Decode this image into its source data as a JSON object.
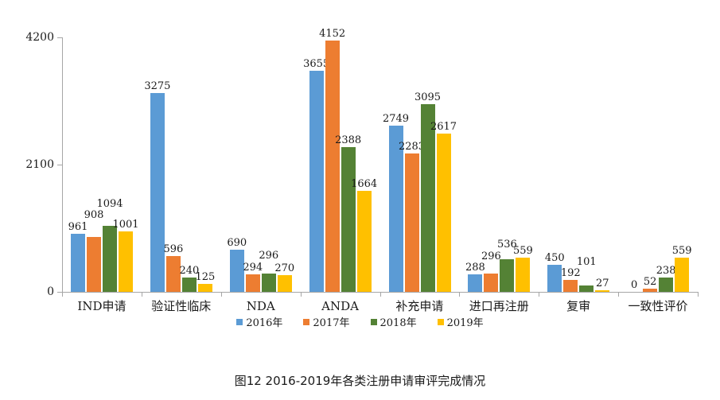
{
  "title": "图12 2016-2019年各类注册申请审评完成情况",
  "colors": {
    "series": [
      "#5B9BD5",
      "#ED7D31",
      "#548235",
      "#FFC000"
    ],
    "axis": "#A6A6A6",
    "text": "#1A1A1A",
    "background": "#FFFFFF"
  },
  "y_axis": {
    "tick_labels": [
      "0",
      "2100",
      "4200"
    ]
  },
  "legend": {
    "items": [
      "2016年",
      "2017年",
      "2018年",
      "2019年"
    ]
  },
  "chart_data": {
    "type": "bar",
    "title": "图12 2016-2019年各类注册申请审评完成情况",
    "categories": [
      "IND申请",
      "验证性临床",
      "NDA",
      "ANDA",
      "补充申请",
      "进口再注册",
      "复审",
      "一致性评价"
    ],
    "series": [
      {
        "name": "2016年",
        "color": "#5B9BD5",
        "values": [
          961,
          3275,
          690,
          3655,
          2749,
          288,
          450,
          0
        ]
      },
      {
        "name": "2017年",
        "color": "#ED7D31",
        "values": [
          908,
          596,
          294,
          4152,
          2283,
          296,
          192,
          52
        ]
      },
      {
        "name": "2018年",
        "color": "#548235",
        "values": [
          1094,
          240,
          296,
          2388,
          3095,
          536,
          101,
          238
        ]
      },
      {
        "name": "2019年",
        "color": "#FFC000",
        "values": [
          1001,
          125,
          270,
          1664,
          2617,
          559,
          27,
          559
        ]
      }
    ],
    "xlabel": "",
    "ylabel": "",
    "ylim": [
      0,
      4200
    ],
    "y_ticks": [
      0,
      2100,
      4200
    ],
    "grid": false,
    "data_labels": true,
    "legend_position": "bottom"
  }
}
